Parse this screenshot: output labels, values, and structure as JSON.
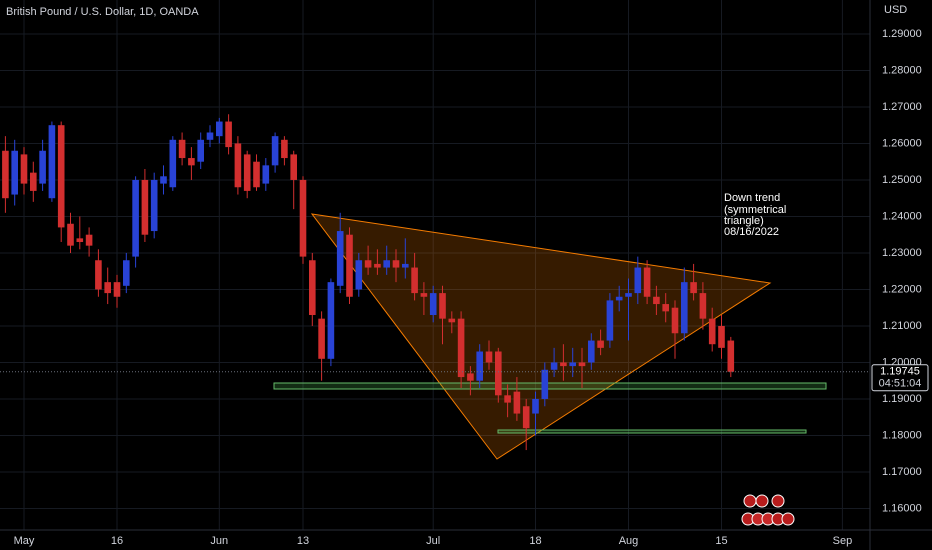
{
  "chart_data": {
    "type": "candlestick",
    "title": "British Pound / U.S. Dollar, 1D, OANDA",
    "y_axis_label": "USD",
    "annotation": [
      "Down trend",
      "(symmetrical",
      "triangle)",
      "08/16/2022"
    ],
    "last_price": {
      "value": 1.19745,
      "label": "1.19745"
    },
    "countdown": "04:51:04",
    "up_color": "#2943d6",
    "down_color": "#d32f2f",
    "grid": true,
    "open": [
      1.258,
      1.246,
      1.257,
      1.252,
      1.249,
      1.245,
      1.265,
      1.238,
      1.234,
      1.235,
      1.228,
      1.222,
      1.222,
      1.221,
      1.229,
      1.25,
      1.236,
      1.249,
      1.248,
      1.261,
      1.256,
      1.255,
      1.261,
      1.262,
      1.266,
      1.26,
      1.257,
      1.255,
      1.249,
      1.254,
      1.261,
      1.257,
      1.25,
      1.228,
      1.212,
      1.201,
      1.221,
      1.235,
      1.22,
      1.228,
      1.227,
      1.226,
      1.228,
      1.226,
      1.226,
      1.219,
      1.213,
      1.219,
      1.212,
      1.212,
      1.197,
      1.195,
      1.203,
      1.203,
      1.191,
      1.192,
      1.188,
      1.186,
      1.19,
      1.198,
      1.2,
      1.199,
      1.2,
      1.2,
      1.206,
      1.206,
      1.217,
      1.218,
      1.219,
      1.226,
      1.218,
      1.216,
      1.215,
      1.208,
      1.222,
      1.219,
      1.212,
      1.21,
      1.206
    ],
    "high": [
      1.262,
      1.261,
      1.259,
      1.255,
      1.261,
      1.266,
      1.266,
      1.241,
      1.24,
      1.237,
      1.231,
      1.226,
      1.224,
      1.23,
      1.251,
      1.253,
      1.252,
      1.254,
      1.262,
      1.263,
      1.259,
      1.263,
      1.265,
      1.267,
      1.268,
      1.262,
      1.258,
      1.257,
      1.256,
      1.263,
      1.262,
      1.258,
      1.251,
      1.23,
      1.214,
      1.223,
      1.241,
      1.237,
      1.23,
      1.232,
      1.231,
      1.232,
      1.231,
      1.234,
      1.23,
      1.222,
      1.221,
      1.221,
      1.214,
      1.214,
      1.199,
      1.205,
      1.206,
      1.204,
      1.194,
      1.196,
      1.19,
      1.192,
      1.2,
      1.204,
      1.205,
      1.204,
      1.204,
      1.208,
      1.209,
      1.219,
      1.221,
      1.223,
      1.229,
      1.228,
      1.221,
      1.219,
      1.217,
      1.226,
      1.227,
      1.222,
      1.215,
      1.213,
      1.207
    ],
    "low": [
      1.241,
      1.243,
      1.246,
      1.244,
      1.247,
      1.244,
      1.233,
      1.23,
      1.231,
      1.229,
      1.218,
      1.216,
      1.215,
      1.219,
      1.226,
      1.233,
      1.234,
      1.246,
      1.247,
      1.254,
      1.25,
      1.253,
      1.259,
      1.26,
      1.257,
      1.246,
      1.245,
      1.247,
      1.247,
      1.252,
      1.254,
      1.242,
      1.227,
      1.21,
      1.195,
      1.199,
      1.219,
      1.216,
      1.218,
      1.224,
      1.224,
      1.224,
      1.222,
      1.223,
      1.217,
      1.213,
      1.211,
      1.205,
      1.208,
      1.193,
      1.191,
      1.193,
      1.198,
      1.189,
      1.185,
      1.184,
      1.176,
      1.18,
      1.188,
      1.196,
      1.195,
      1.196,
      1.193,
      1.198,
      1.202,
      1.204,
      1.214,
      1.206,
      1.216,
      1.216,
      1.213,
      1.211,
      1.201,
      1.206,
      1.217,
      1.209,
      1.203,
      1.201,
      1.196
    ],
    "close": [
      1.245,
      1.258,
      1.249,
      1.247,
      1.258,
      1.265,
      1.237,
      1.232,
      1.233,
      1.232,
      1.22,
      1.219,
      1.218,
      1.228,
      1.25,
      1.235,
      1.25,
      1.251,
      1.261,
      1.256,
      1.254,
      1.261,
      1.263,
      1.266,
      1.259,
      1.248,
      1.247,
      1.248,
      1.254,
      1.262,
      1.256,
      1.25,
      1.229,
      1.213,
      1.201,
      1.222,
      1.236,
      1.218,
      1.228,
      1.226,
      1.226,
      1.228,
      1.226,
      1.227,
      1.219,
      1.218,
      1.219,
      1.212,
      1.211,
      1.196,
      1.195,
      1.203,
      1.2,
      1.191,
      1.189,
      1.186,
      1.182,
      1.19,
      1.198,
      1.2,
      1.199,
      1.2,
      1.199,
      1.206,
      1.204,
      1.217,
      1.218,
      1.219,
      1.226,
      1.218,
      1.216,
      1.214,
      1.208,
      1.222,
      1.219,
      1.212,
      1.205,
      1.204,
      1.19745
    ],
    "ylim": [
      1.1541,
      1.2993
    ],
    "yticks": [
      {
        "value": 1.16,
        "label": "1.16000"
      },
      {
        "value": 1.17,
        "label": "1.17000"
      },
      {
        "value": 1.18,
        "label": "1.18000"
      },
      {
        "value": 1.19,
        "label": "1.19000"
      },
      {
        "value": 1.2,
        "label": "1.20000"
      },
      {
        "value": 1.21,
        "label": "1.21000"
      },
      {
        "value": 1.22,
        "label": "1.22000"
      },
      {
        "value": 1.23,
        "label": "1.23000"
      },
      {
        "value": 1.24,
        "label": "1.24000"
      },
      {
        "value": 1.25,
        "label": "1.25000"
      },
      {
        "value": 1.26,
        "label": "1.26000"
      },
      {
        "value": 1.27,
        "label": "1.27000"
      },
      {
        "value": 1.28,
        "label": "1.28000"
      },
      {
        "value": 1.29,
        "label": "1.29000"
      }
    ],
    "xticks": [
      {
        "value": 2,
        "label": "May"
      },
      {
        "value": 12,
        "label": "16"
      },
      {
        "value": 23,
        "label": "Jun"
      },
      {
        "value": 32,
        "label": "13"
      },
      {
        "value": 46,
        "label": "Jul"
      },
      {
        "value": 57,
        "label": "18"
      },
      {
        "value": 67,
        "label": "Aug"
      },
      {
        "value": 77,
        "label": "15"
      },
      {
        "value": 90,
        "label": "Sep"
      }
    ]
  }
}
